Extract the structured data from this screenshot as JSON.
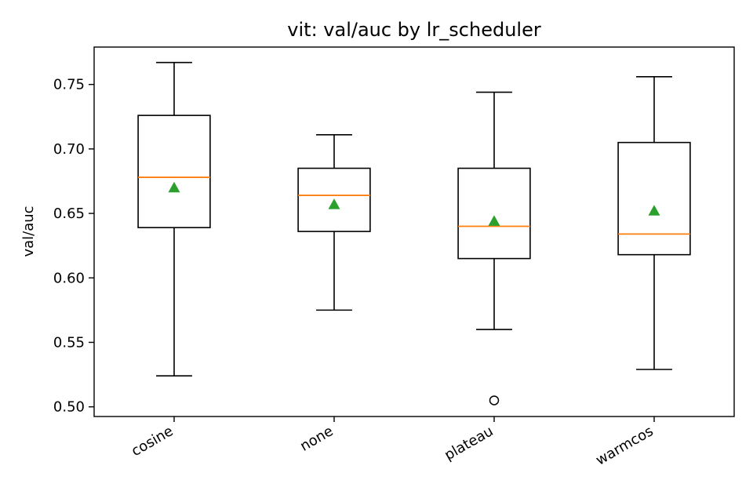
{
  "chart_data": {
    "type": "box",
    "title": "vit: val/auc by lr_scheduler",
    "xlabel": "",
    "ylabel": "val/auc",
    "ylim": [
      0.4925,
      0.779
    ],
    "yticks": [
      "0.50",
      "0.55",
      "0.60",
      "0.65",
      "0.70",
      "0.75"
    ],
    "categories": [
      "cosine",
      "none",
      "plateau",
      "warmcos"
    ],
    "boxes": [
      {
        "category": "cosine",
        "whisker_low": 0.524,
        "q1": 0.639,
        "median": 0.678,
        "q3": 0.726,
        "whisker_high": 0.767,
        "mean": 0.67,
        "outliers": []
      },
      {
        "category": "none",
        "whisker_low": 0.575,
        "q1": 0.636,
        "median": 0.664,
        "q3": 0.685,
        "whisker_high": 0.711,
        "mean": 0.657,
        "outliers": []
      },
      {
        "category": "plateau",
        "whisker_low": 0.56,
        "q1": 0.615,
        "median": 0.64,
        "q3": 0.685,
        "whisker_high": 0.744,
        "mean": 0.644,
        "outliers": [
          0.505
        ]
      },
      {
        "category": "warmcos",
        "whisker_low": 0.529,
        "q1": 0.618,
        "median": 0.634,
        "q3": 0.705,
        "whisker_high": 0.756,
        "mean": 0.652,
        "outliers": []
      }
    ],
    "colors": {
      "box": "#000000",
      "median": "#ff7f0e",
      "mean": "#2ca02c",
      "outlier": "#000000"
    },
    "grid": false,
    "legend": "none"
  }
}
